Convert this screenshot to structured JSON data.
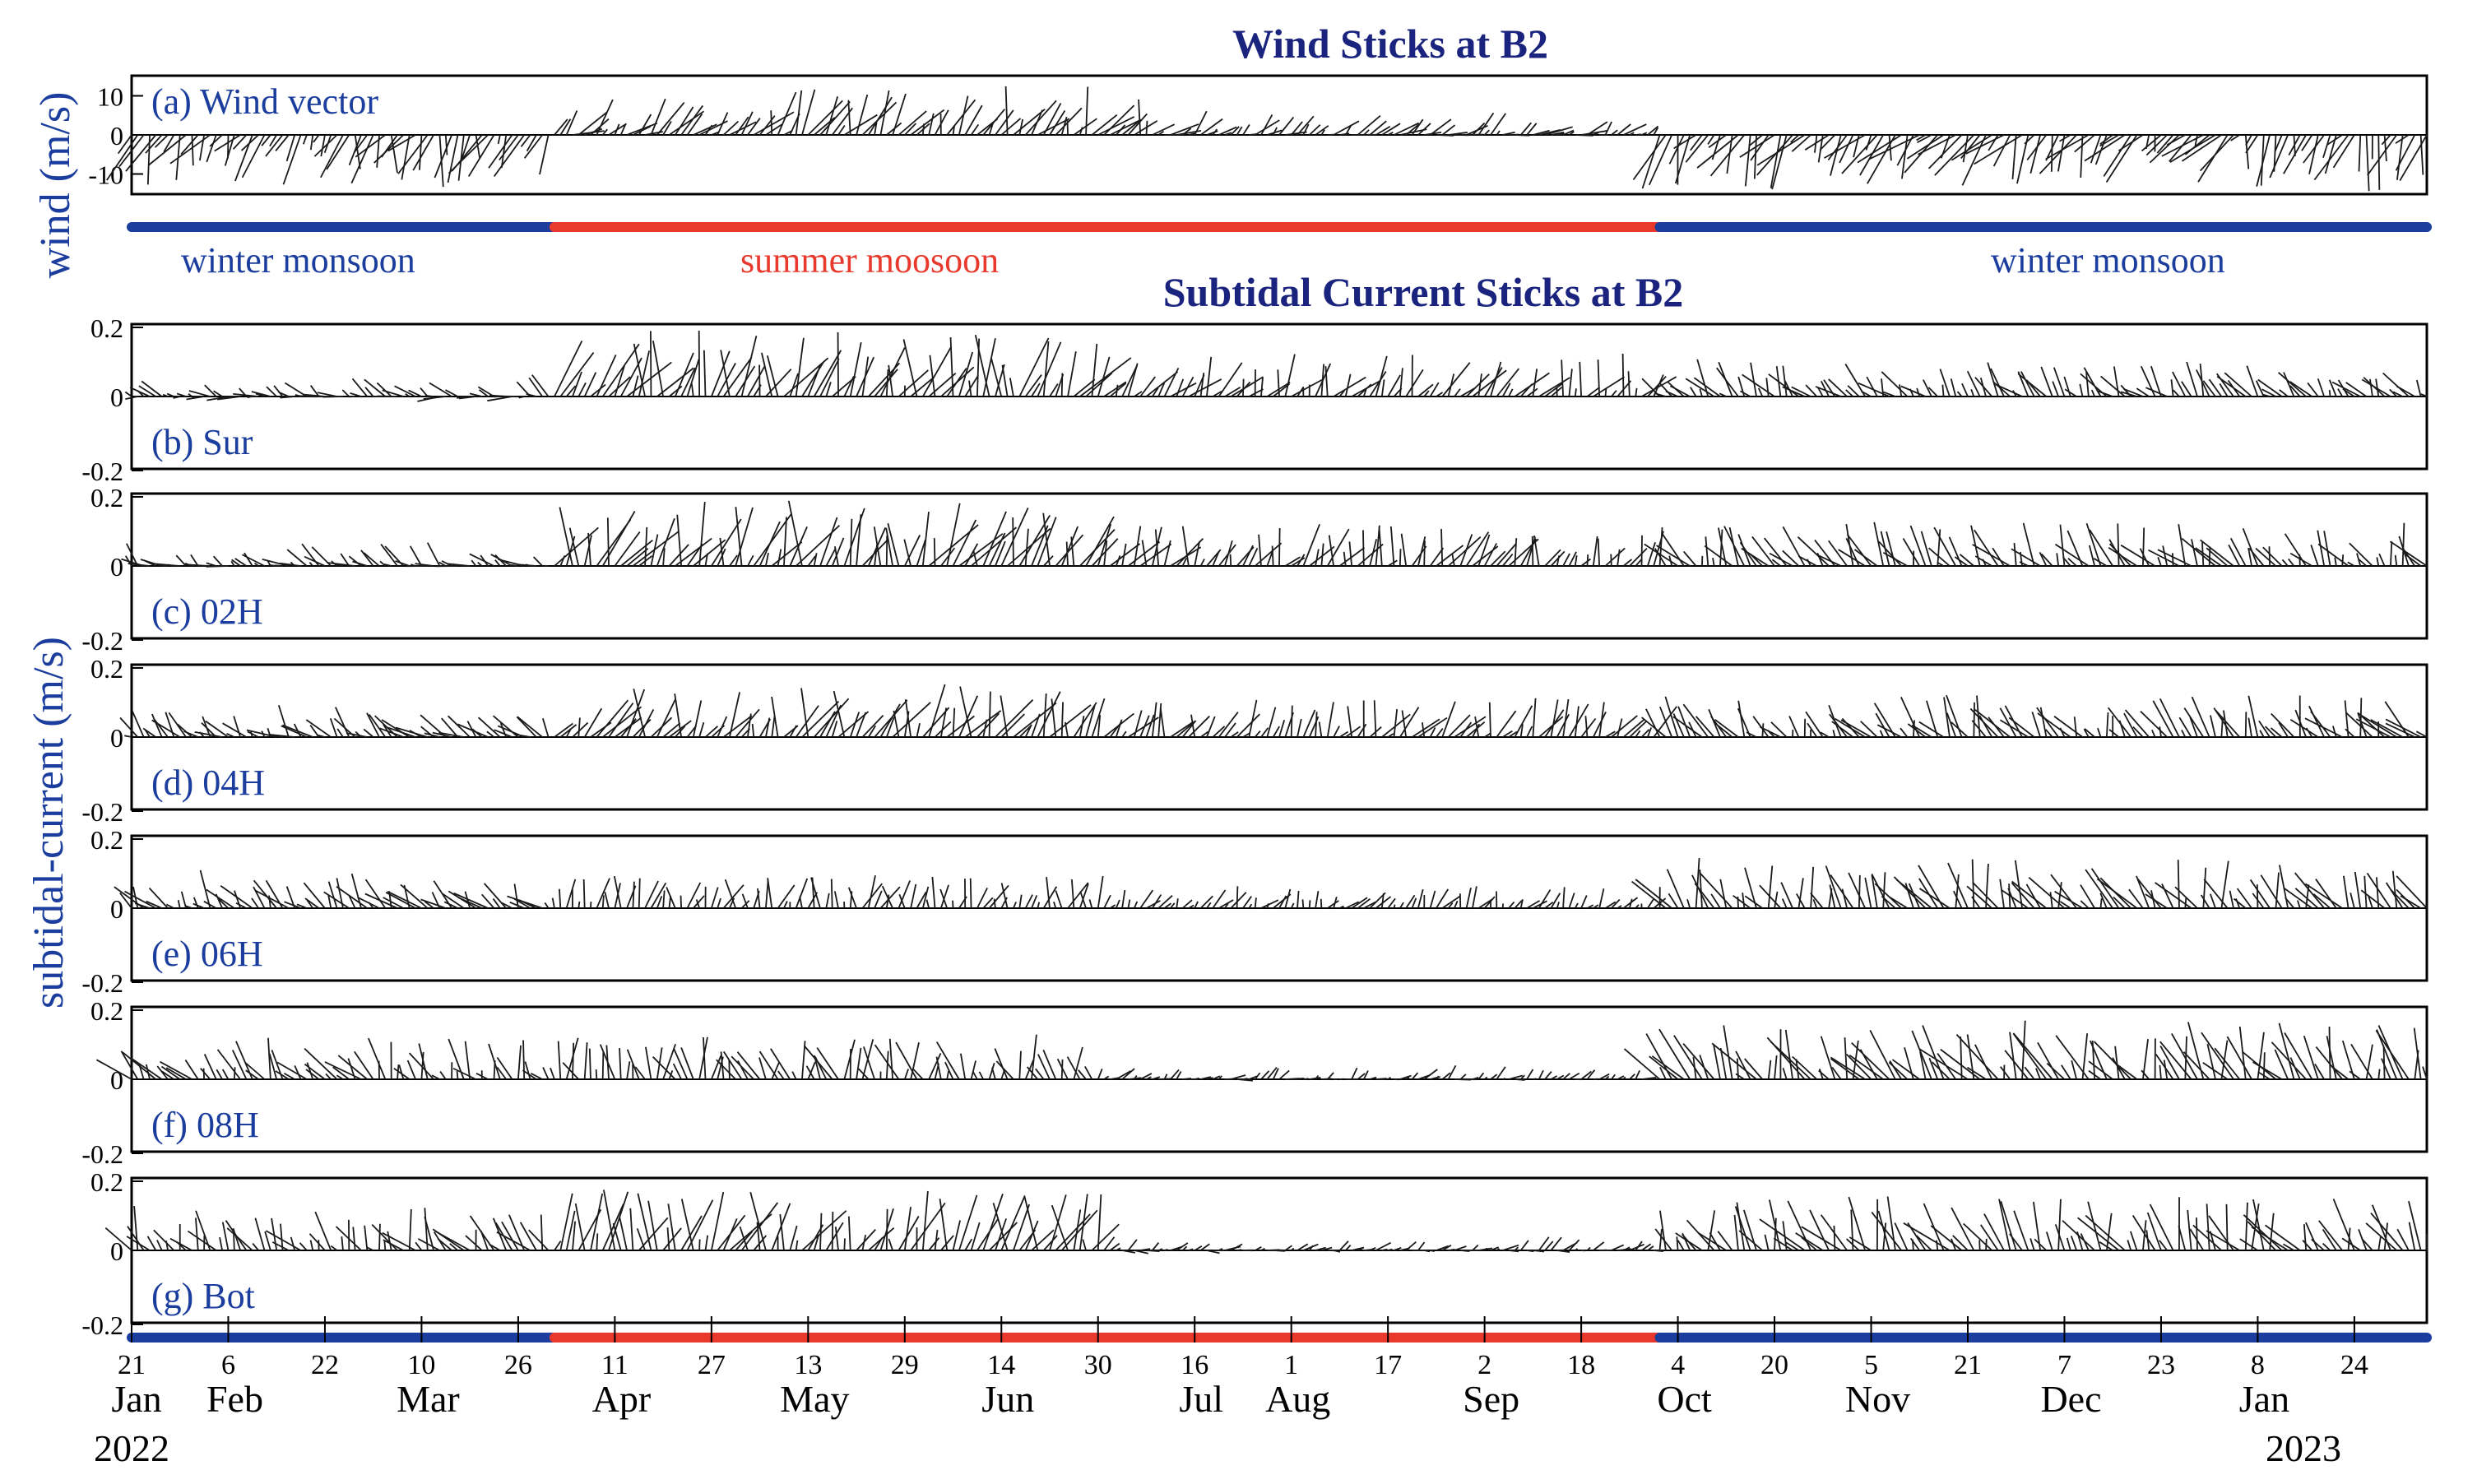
{
  "chart_data": {
    "type": "stick-plot",
    "title_wind": "Wind Sticks at B2",
    "title_current": "Subtidal Current Sticks at B2",
    "ylabel_wind": "wind (m/s)",
    "ylabel_current": "subtidal-current (m/s)",
    "x_range": [
      "2022-01-21",
      "2023-02-05"
    ],
    "tick_days": [
      "21",
      "6",
      "22",
      "10",
      "26",
      "11",
      "27",
      "13",
      "29",
      "14",
      "30",
      "16",
      "1",
      "17",
      "2",
      "18",
      "4",
      "20",
      "5",
      "21",
      "7",
      "23",
      "8",
      "24"
    ],
    "month_labels": [
      "Jan",
      "Feb",
      "Mar",
      "Apr",
      "May",
      "Jun",
      "Jul",
      "Aug",
      "Sep",
      "Oct",
      "Nov",
      "Dec",
      "Jan"
    ],
    "year_labels": [
      "2022",
      "2023"
    ],
    "season_labels": [
      "winter monsoon",
      "summer moosoon",
      "winter monsoon"
    ],
    "seasons": [
      {
        "name": "winter monsoon",
        "start": "2022-01-21",
        "end": "2022-04-01",
        "color": "#1a3d9e"
      },
      {
        "name": "summer moosoon",
        "start": "2022-04-01",
        "end": "2022-10-01",
        "color": "#e8392c"
      },
      {
        "name": "winter monsoon",
        "start": "2022-10-01",
        "end": "2023-02-05",
        "color": "#1a3d9e"
      }
    ],
    "panels": [
      {
        "id": "a",
        "label": "(a) Wind vector",
        "yticks": [
          "10",
          "0",
          "-10"
        ],
        "ylim": [
          -15,
          15
        ],
        "segments": [
          {
            "start": "2022-01-21",
            "end": "2022-04-01",
            "dir_deg": 205,
            "speed": 9
          },
          {
            "start": "2022-04-01",
            "end": "2022-05-01",
            "dir_deg": 50,
            "speed": 7
          },
          {
            "start": "2022-05-01",
            "end": "2022-07-10",
            "dir_deg": 30,
            "speed": 8
          },
          {
            "start": "2022-07-10",
            "end": "2022-10-01",
            "dir_deg": 60,
            "speed": 5
          },
          {
            "start": "2022-10-01",
            "end": "2023-02-05",
            "dir_deg": 210,
            "speed": 10
          }
        ]
      },
      {
        "id": "b",
        "label": "(b) Sur",
        "yticks": [
          "0.2",
          "0",
          "-0.2"
        ],
        "ylim": [
          -0.2,
          0.2
        ],
        "segments": [
          {
            "start": "2022-01-21",
            "end": "2022-04-01",
            "dir_deg": 290,
            "speed": 0.05
          },
          {
            "start": "2022-04-01",
            "end": "2022-07-01",
            "dir_deg": 20,
            "speed": 0.12
          },
          {
            "start": "2022-07-01",
            "end": "2022-10-01",
            "dir_deg": 30,
            "speed": 0.08
          },
          {
            "start": "2022-10-01",
            "end": "2023-02-05",
            "dir_deg": 320,
            "speed": 0.07
          }
        ]
      },
      {
        "id": "c",
        "label": "(c) 02H",
        "yticks": [
          "0.2",
          "0",
          "-0.2"
        ],
        "ylim": [
          -0.2,
          0.2
        ],
        "segments": [
          {
            "start": "2022-01-21",
            "end": "2022-04-01",
            "dir_deg": 300,
            "speed": 0.05
          },
          {
            "start": "2022-04-01",
            "end": "2022-07-01",
            "dir_deg": 20,
            "speed": 0.12
          },
          {
            "start": "2022-07-01",
            "end": "2022-10-01",
            "dir_deg": 25,
            "speed": 0.08
          },
          {
            "start": "2022-10-01",
            "end": "2023-02-05",
            "dir_deg": 330,
            "speed": 0.08
          }
        ]
      },
      {
        "id": "d",
        "label": "(d) 04H",
        "yticks": [
          "0.2",
          "0",
          "-0.2"
        ],
        "ylim": [
          -0.2,
          0.2
        ],
        "segments": [
          {
            "start": "2022-01-21",
            "end": "2022-04-01",
            "dir_deg": 310,
            "speed": 0.06
          },
          {
            "start": "2022-04-01",
            "end": "2022-07-01",
            "dir_deg": 20,
            "speed": 0.1
          },
          {
            "start": "2022-07-01",
            "end": "2022-10-01",
            "dir_deg": 25,
            "speed": 0.07
          },
          {
            "start": "2022-10-01",
            "end": "2023-02-05",
            "dir_deg": 330,
            "speed": 0.08
          }
        ]
      },
      {
        "id": "e",
        "label": "(e) 06H",
        "yticks": [
          "0.2",
          "0",
          "-0.2"
        ],
        "ylim": [
          -0.2,
          0.2
        ],
        "segments": [
          {
            "start": "2022-01-21",
            "end": "2022-04-01",
            "dir_deg": 320,
            "speed": 0.07
          },
          {
            "start": "2022-04-01",
            "end": "2022-07-01",
            "dir_deg": 10,
            "speed": 0.06
          },
          {
            "start": "2022-07-01",
            "end": "2022-10-01",
            "dir_deg": 30,
            "speed": 0.04
          },
          {
            "start": "2022-10-01",
            "end": "2023-02-05",
            "dir_deg": 335,
            "speed": 0.09
          }
        ]
      },
      {
        "id": "f",
        "label": "(f) 08H",
        "yticks": [
          "0.2",
          "0",
          "-0.2"
        ],
        "ylim": [
          -0.2,
          0.2
        ],
        "segments": [
          {
            "start": "2022-01-21",
            "end": "2022-04-01",
            "dir_deg": 330,
            "speed": 0.08
          },
          {
            "start": "2022-04-01",
            "end": "2022-07-01",
            "dir_deg": 350,
            "speed": 0.08
          },
          {
            "start": "2022-07-01",
            "end": "2022-10-01",
            "dir_deg": 60,
            "speed": 0.03
          },
          {
            "start": "2022-10-01",
            "end": "2023-02-05",
            "dir_deg": 335,
            "speed": 0.11
          }
        ]
      },
      {
        "id": "g",
        "label": "(g) Bot",
        "yticks": [
          "0.2",
          "0",
          "-0.2"
        ],
        "ylim": [
          -0.2,
          0.2
        ],
        "segments": [
          {
            "start": "2022-01-21",
            "end": "2022-04-01",
            "dir_deg": 330,
            "speed": 0.08
          },
          {
            "start": "2022-04-01",
            "end": "2022-07-01",
            "dir_deg": 15,
            "speed": 0.11
          },
          {
            "start": "2022-07-01",
            "end": "2022-10-01",
            "dir_deg": 70,
            "speed": 0.03
          },
          {
            "start": "2022-10-01",
            "end": "2023-02-05",
            "dir_deg": 335,
            "speed": 0.1
          }
        ]
      }
    ]
  },
  "colors": {
    "title": "#1a237e",
    "label": "#1a3d9e",
    "winter": "#1a3d9e",
    "summer": "#e8392c",
    "stick": "#1a1a1a",
    "axis": "#000000"
  }
}
